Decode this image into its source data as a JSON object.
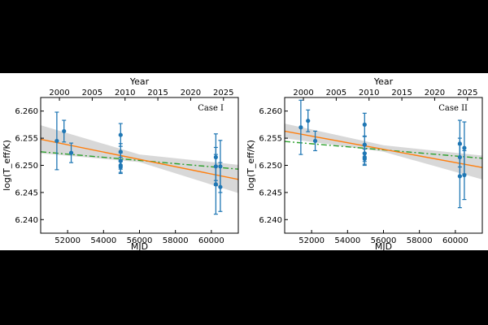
{
  "chart_data": [
    {
      "type": "scatter",
      "annotation": "Case I",
      "xlabel": "MJD",
      "ylabel": "log(T_eff/K)",
      "top_xlabel": "Year",
      "xlim": [
        50500,
        61500
      ],
      "ylim": [
        6.2375,
        6.2625
      ],
      "xticks": [
        52000,
        54000,
        56000,
        58000,
        60000
      ],
      "yticks": [
        6.24,
        6.245,
        6.25,
        6.255,
        6.26
      ],
      "top_ticks_year": [
        2000,
        2005,
        2010,
        2015,
        2020,
        2025
      ],
      "grid": false,
      "colors": {
        "points": "#1f77b4",
        "fit": "#ff7f0e",
        "model": "#2ca02c",
        "band": "#c8c8c8"
      },
      "points": [
        {
          "x": 51400,
          "y": 6.2545,
          "err": 0.0053
        },
        {
          "x": 51800,
          "y": 6.2563,
          "err": 0.002
        },
        {
          "x": 52200,
          "y": 6.2523,
          "err": 0.0018
        },
        {
          "x": 54950,
          "y": 6.2556,
          "err": 0.0021
        },
        {
          "x": 54950,
          "y": 6.2525,
          "err": 0.0015
        },
        {
          "x": 54950,
          "y": 6.2508,
          "err": 0.0015
        },
        {
          "x": 54950,
          "y": 6.25,
          "err": 0.0015
        },
        {
          "x": 54950,
          "y": 6.2497,
          "err": 0.001
        },
        {
          "x": 60250,
          "y": 6.2515,
          "err": 0.0043
        },
        {
          "x": 60250,
          "y": 6.2498,
          "err": 0.0035
        },
        {
          "x": 60250,
          "y": 6.2465,
          "err": 0.0055
        },
        {
          "x": 60500,
          "y": 6.2498,
          "err": 0.0048
        },
        {
          "x": 60500,
          "y": 6.246,
          "err": 0.0045
        }
      ],
      "fit_line": {
        "x": [
          50500,
          61500
        ],
        "y": [
          6.2548,
          6.2474
        ]
      },
      "fit_band": {
        "x": [
          50500,
          56000,
          61500
        ],
        "upper": [
          6.2574,
          6.252,
          6.2501
        ],
        "lower": [
          6.2522,
          6.2506,
          6.2449
        ]
      },
      "model_line": {
        "x": [
          50500,
          61500
        ],
        "y": [
          6.2525,
          6.2493
        ]
      }
    },
    {
      "type": "scatter",
      "annotation": "Case II",
      "xlabel": "MJD",
      "ylabel": "log(T_eff/K)",
      "top_xlabel": "Year",
      "xlim": [
        50500,
        61500
      ],
      "ylim": [
        6.2375,
        6.2625
      ],
      "xticks": [
        52000,
        54000,
        56000,
        58000,
        60000
      ],
      "yticks": [
        6.24,
        6.245,
        6.25,
        6.255,
        6.26
      ],
      "top_ticks_year": [
        2000,
        2005,
        2010,
        2015,
        2020,
        2025
      ],
      "grid": false,
      "colors": {
        "points": "#1f77b4",
        "fit": "#ff7f0e",
        "model": "#2ca02c",
        "band": "#c8c8c8"
      },
      "points": [
        {
          "x": 51400,
          "y": 6.257,
          "err": 0.005
        },
        {
          "x": 51800,
          "y": 6.2582,
          "err": 0.002
        },
        {
          "x": 52200,
          "y": 6.2545,
          "err": 0.0018
        },
        {
          "x": 54950,
          "y": 6.2575,
          "err": 0.0021
        },
        {
          "x": 54950,
          "y": 6.2538,
          "err": 0.0015
        },
        {
          "x": 54950,
          "y": 6.2522,
          "err": 0.0015
        },
        {
          "x": 54950,
          "y": 6.2515,
          "err": 0.0015
        },
        {
          "x": 54950,
          "y": 6.2512,
          "err": 0.001
        },
        {
          "x": 60250,
          "y": 6.254,
          "err": 0.0043
        },
        {
          "x": 60250,
          "y": 6.2515,
          "err": 0.0035
        },
        {
          "x": 60250,
          "y": 6.248,
          "err": 0.0058
        },
        {
          "x": 60500,
          "y": 6.2532,
          "err": 0.0048
        },
        {
          "x": 60500,
          "y": 6.2482,
          "err": 0.0045
        }
      ],
      "fit_line": {
        "x": [
          50500,
          61500
        ],
        "y": [
          6.2563,
          6.2496
        ]
      },
      "fit_band": {
        "x": [
          50500,
          56000,
          61500
        ],
        "upper": [
          6.2577,
          6.2537,
          6.2518
        ],
        "lower": [
          6.255,
          6.2525,
          6.2474
        ]
      },
      "model_line": {
        "x": [
          50500,
          61500
        ],
        "y": [
          6.2544,
          6.2513
        ]
      }
    }
  ]
}
